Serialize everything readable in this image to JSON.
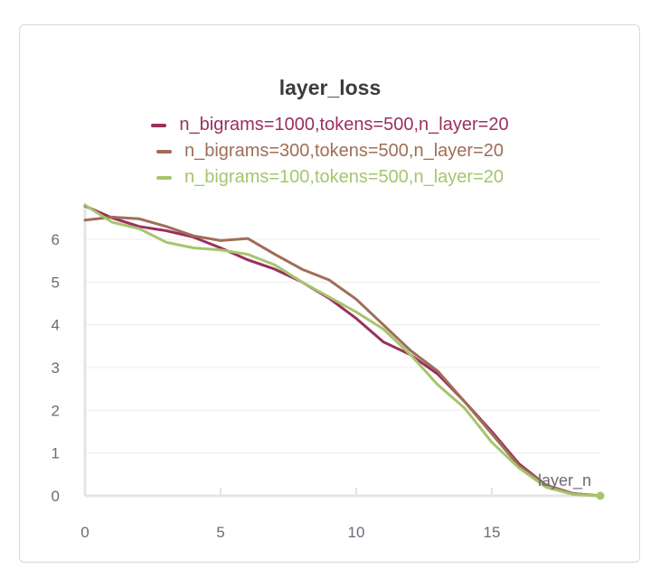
{
  "chart_data": {
    "type": "line",
    "title": "layer_loss",
    "xlabel": "layer_n",
    "ylabel": "",
    "xlim": [
      0,
      19
    ],
    "ylim": [
      0,
      6.8
    ],
    "x_ticks": [
      "0",
      "5",
      "10",
      "15"
    ],
    "y_ticks": [
      "0",
      "1",
      "2",
      "3",
      "4",
      "5",
      "6"
    ],
    "grid": true,
    "legend_position": "top",
    "x": [
      0,
      1,
      2,
      3,
      4,
      5,
      6,
      7,
      8,
      9,
      10,
      11,
      12,
      13,
      14,
      15,
      16,
      17,
      18,
      19
    ],
    "series": [
      {
        "name": "n_bigrams=1000,tokens=500,n_layer=20",
        "color": "#9a2f5f",
        "values": [
          6.78,
          6.5,
          6.3,
          6.2,
          6.05,
          5.8,
          5.52,
          5.3,
          5.0,
          4.62,
          4.15,
          3.6,
          3.3,
          2.85,
          2.2,
          1.5,
          0.75,
          0.25,
          0.05,
          0.0
        ]
      },
      {
        "name": "n_bigrams=300,tokens=500,n_layer=20",
        "color": "#a06d57",
        "values": [
          6.45,
          6.52,
          6.48,
          6.3,
          6.08,
          5.97,
          6.02,
          5.65,
          5.3,
          5.05,
          4.6,
          4.0,
          3.4,
          2.92,
          2.2,
          1.45,
          0.7,
          0.25,
          0.05,
          0.0
        ]
      },
      {
        "name": "n_bigrams=100,tokens=500,n_layer=20",
        "color": "#a6c56c",
        "values": [
          6.8,
          6.4,
          6.25,
          5.93,
          5.8,
          5.75,
          5.65,
          5.4,
          5.0,
          4.65,
          4.3,
          3.9,
          3.3,
          2.6,
          2.05,
          1.25,
          0.65,
          0.2,
          0.03,
          0.0
        ]
      }
    ]
  }
}
